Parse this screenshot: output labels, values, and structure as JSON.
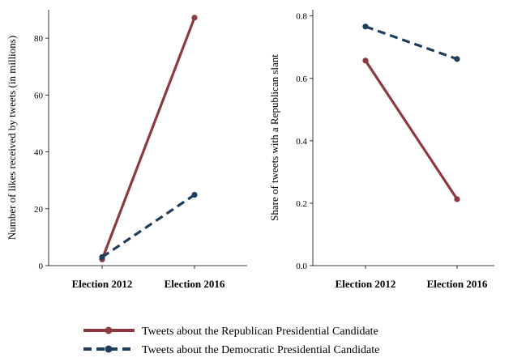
{
  "chart_data": [
    {
      "type": "line",
      "categories": [
        "Election 2012",
        "Election 2016"
      ],
      "ylabel": "Number of likes received by tweets (in millions)",
      "ylim": [
        0,
        90
      ],
      "yticks": [
        "0",
        "20",
        "40",
        "60",
        "80"
      ],
      "grid": false,
      "series": [
        {
          "name": "Tweets about the Republican Presidential Candidate",
          "values": [
            2.2,
            87.2
          ]
        },
        {
          "name": "Tweets about the Democratic Presidential Candidate",
          "values": [
            3.0,
            24.9
          ]
        }
      ]
    },
    {
      "type": "line",
      "categories": [
        "Election 2012",
        "Election 2016"
      ],
      "ylabel": "Share of tweets with a Republican slant",
      "ylim": [
        0,
        0.82
      ],
      "yticks": [
        "0.0",
        "0.2",
        "0.4",
        "0.6",
        "0.8"
      ],
      "grid": false,
      "series": [
        {
          "name": "Tweets about the Republican Presidential Candidate",
          "values": [
            0.657,
            0.213
          ]
        },
        {
          "name": "Tweets about the Democratic Presidential Candidate",
          "values": [
            0.766,
            0.662
          ]
        }
      ]
    }
  ],
  "legend": {
    "placement": "bottom",
    "items": [
      {
        "label": "Tweets about the Republican Presidential Candidate",
        "color": "#8b3a40",
        "style": "solid"
      },
      {
        "label": "Tweets about the Democratic Presidential Candidate",
        "color": "#1f3d5c",
        "style": "dashed"
      }
    ]
  },
  "colors": {
    "republican": "#8b3a40",
    "democratic": "#1f3d5c",
    "axis": "#000000"
  }
}
